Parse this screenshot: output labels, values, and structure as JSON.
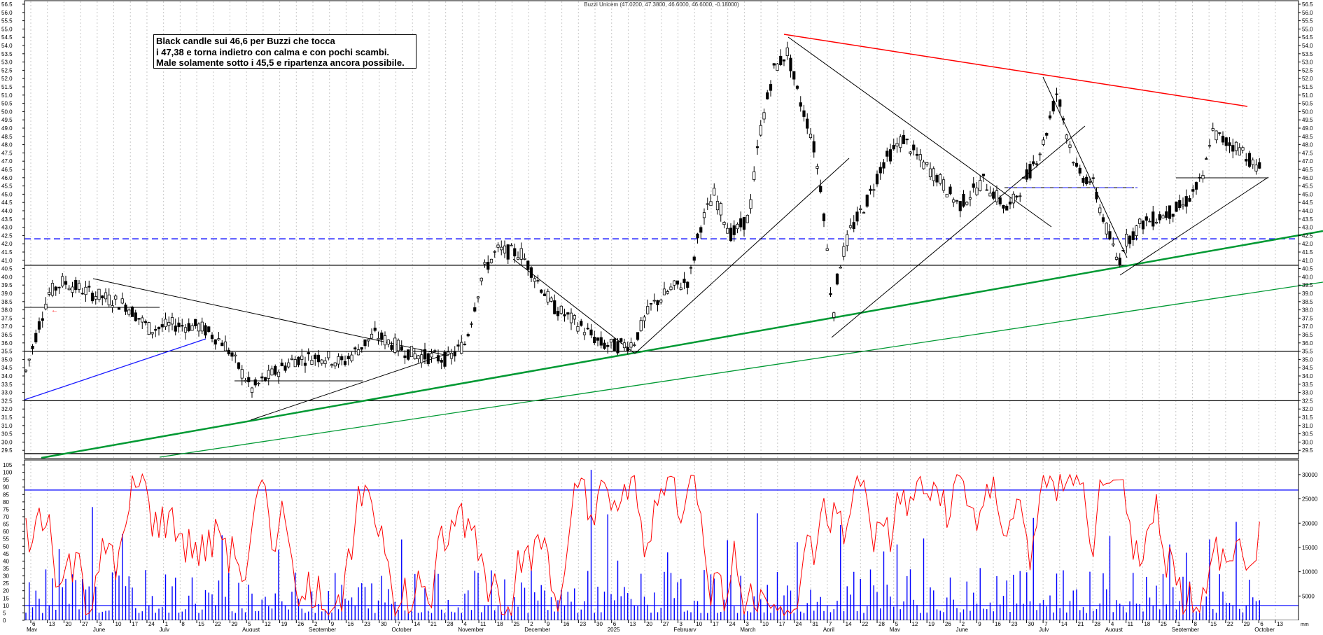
{
  "chart_data": [
    {
      "type": "candlestick",
      "title": "Buzzi Unicem (47.0200, 47.3800, 46.6000, 46.6000, -0.18000)",
      "ylim": [
        29.0,
        56.5
      ],
      "y_ticks": [
        "56.5",
        "56.0",
        "55.5",
        "55.0",
        "54.5",
        "54.0",
        "53.5",
        "53.0",
        "52.5",
        "52.0",
        "51.5",
        "51.0",
        "50.5",
        "50.0",
        "49.5",
        "49.0",
        "48.5",
        "48.0",
        "47.5",
        "47.0",
        "46.5",
        "46.0",
        "45.5",
        "45.0",
        "44.5",
        "44.0",
        "43.5",
        "43.0",
        "42.5",
        "42.0",
        "41.5",
        "41.0",
        "40.5",
        "40.0",
        "39.5",
        "39.0",
        "38.5",
        "38.0",
        "37.5",
        "37.0",
        "36.5",
        "36.0",
        "35.5",
        "35.0",
        "34.5",
        "34.0",
        "33.5",
        "33.0",
        "32.5",
        "32.0",
        "31.5",
        "31.0",
        "30.5",
        "30.0",
        "29.5"
      ],
      "horizontal_lines": [
        {
          "value": 42.3,
          "style": "dashed",
          "color": "#1a1aff"
        },
        {
          "value": 40.7,
          "style": "solid",
          "color": "#000000"
        },
        {
          "value": 35.5,
          "style": "solid",
          "color": "#000000"
        },
        {
          "value": 32.5,
          "style": "solid",
          "color": "#000000"
        },
        {
          "value": 29.3,
          "style": "solid",
          "color": "#000000"
        }
      ],
      "annotation": [
        "Black candle sui 46,6 per Buzzi che tocca",
        "i 47,38 e torna indietro con calma e con pochi scambi.",
        "Male solamente sotto i 45,5 e ripartenza ancora possibile."
      ],
      "grid": true
    },
    {
      "type": "line",
      "name": "oscillator",
      "ylim": [
        0,
        105
      ],
      "y_ticks_left": [
        "105",
        "100",
        "95",
        "90",
        "85",
        "80",
        "75",
        "70",
        "65",
        "60",
        "55",
        "50",
        "45",
        "40",
        "35",
        "30",
        "25",
        "20",
        "15",
        "10",
        "5",
        "0"
      ],
      "reference_lines": [
        88,
        10
      ],
      "color": "#ff0000"
    },
    {
      "type": "bar",
      "name": "volume",
      "ylim": [
        0,
        32000
      ],
      "y_ticks_right": [
        "30000",
        "25000",
        "20000",
        "15000",
        "10000",
        "5000"
      ],
      "color": "#0000ff"
    }
  ],
  "x_axis": {
    "day_labels": [
      "6",
      "13",
      "20",
      "27",
      "3",
      "10",
      "17",
      "24",
      "1",
      "8",
      "15",
      "22",
      "29",
      "5",
      "12",
      "19",
      "26",
      "2",
      "9",
      "16",
      "23",
      "30",
      "7",
      "14",
      "21",
      "28",
      "4",
      "11",
      "18",
      "25",
      "2",
      "9",
      "16",
      "23",
      "30",
      "6",
      "13",
      "20",
      "27",
      "3",
      "10",
      "17",
      "24",
      "3",
      "10",
      "17",
      "24",
      "31",
      "7",
      "14",
      "22",
      "28",
      "5",
      "12",
      "19",
      "26",
      "2",
      "9",
      "16",
      "23",
      "30",
      "7",
      "14",
      "21",
      "28",
      "4",
      "11",
      "18",
      "25",
      "1",
      "8",
      "15",
      "22",
      "29",
      "6",
      "13"
    ],
    "month_labels": [
      "May",
      "June",
      "July",
      "August",
      "September",
      "October",
      "November",
      "December",
      "2025",
      "February",
      "March",
      "April",
      "May",
      "June",
      "July",
      "August",
      "September",
      "October"
    ],
    "date_units": "mm"
  },
  "colors": {
    "candles": "#000000",
    "trend_red": "#ff0000",
    "trend_green": "#009933",
    "trend_blue": "#1a1aff",
    "trend_black": "#000000"
  }
}
